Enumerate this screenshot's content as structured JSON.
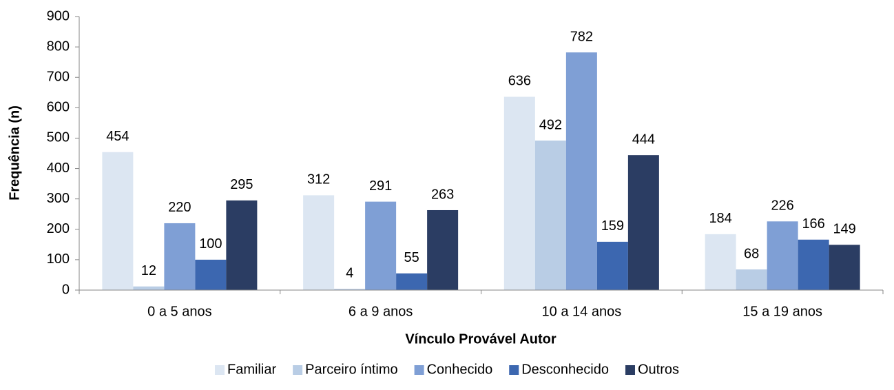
{
  "chart_data": {
    "type": "bar",
    "x_label": "Vínculo Provável Autor",
    "y_label": "Frequência (n)",
    "categories": [
      "0 a 5 anos",
      "6 a 9 anos",
      "10 a 14 anos",
      "15 a 19 anos"
    ],
    "series": [
      {
        "name": "Familiar",
        "color": "#dce6f2",
        "values": [
          454,
          312,
          636,
          184
        ]
      },
      {
        "name": "Parceiro íntimo",
        "color": "#b9cde5",
        "values": [
          12,
          4,
          492,
          68
        ]
      },
      {
        "name": "Conhecido",
        "color": "#7f9fd5",
        "values": [
          220,
          291,
          782,
          226
        ]
      },
      {
        "name": "Desconhecido",
        "color": "#3c67b0",
        "values": [
          100,
          55,
          159,
          166
        ]
      },
      {
        "name": "Outros",
        "color": "#2b3d63",
        "values": [
          295,
          263,
          444,
          149
        ]
      }
    ],
    "ylim": [
      0,
      900
    ],
    "yticks": [
      0,
      100,
      200,
      300,
      400,
      500,
      600,
      700,
      800,
      900
    ],
    "grid": false,
    "legend": "bottom"
  }
}
